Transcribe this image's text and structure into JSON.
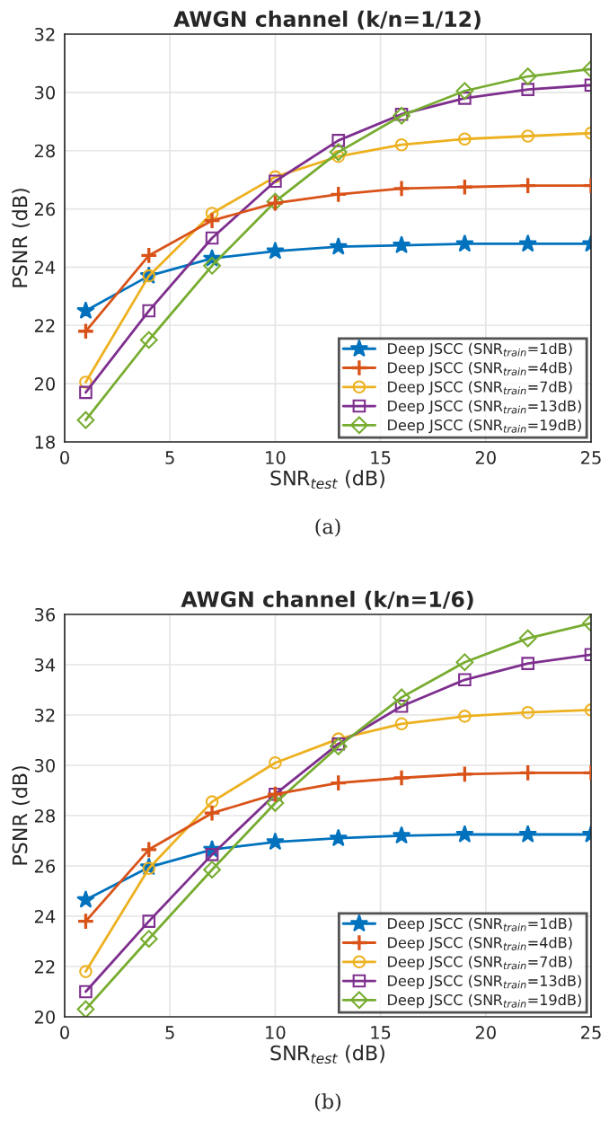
{
  "chart_data": [
    {
      "type": "line",
      "title": "AWGN channel (k/n=1/12)",
      "xlabel": "SNR$_{test}$ (dB)",
      "ylabel": "PSNR (dB)",
      "annotations": [
        "(a)"
      ],
      "x": [
        1,
        4,
        7,
        10,
        13,
        16,
        19,
        22,
        25
      ],
      "xlim": [
        0,
        25
      ],
      "xticks": [
        0,
        5,
        10,
        15,
        20,
        25
      ],
      "ylim": [
        18,
        32
      ],
      "yticks": [
        18,
        20,
        22,
        24,
        26,
        28,
        30,
        32
      ],
      "grid": true,
      "legend": "bottom right",
      "series": [
        {
          "name": "Deep JSCC (SNR$_{train}$=1dB)",
          "color": "#0072bd",
          "marker": "star",
          "values": [
            22.5,
            23.7,
            24.3,
            24.55,
            24.7,
            24.75,
            24.8,
            24.8,
            24.8
          ]
        },
        {
          "name": "Deep JSCC (SNR$_{train}$=4dB)",
          "color": "#d95319",
          "marker": "cross",
          "values": [
            21.8,
            24.4,
            25.6,
            26.2,
            26.5,
            26.7,
            26.75,
            26.8,
            26.8
          ]
        },
        {
          "name": "Deep JSCC (SNR$_{train}$=7dB)",
          "color": "#edb120",
          "marker": "circle",
          "values": [
            20.05,
            23.7,
            25.85,
            27.1,
            27.8,
            28.2,
            28.4,
            28.5,
            28.6
          ]
        },
        {
          "name": "Deep JSCC (SNR$_{train}$=13dB)",
          "color": "#7e2f8e",
          "marker": "square",
          "values": [
            19.7,
            22.5,
            25.0,
            26.95,
            28.35,
            29.25,
            29.8,
            30.1,
            30.25
          ]
        },
        {
          "name": "Deep JSCC (SNR$_{train}$=19dB)",
          "color": "#77ac30",
          "marker": "diamond",
          "values": [
            18.75,
            21.5,
            24.05,
            26.25,
            27.95,
            29.2,
            30.05,
            30.55,
            30.8
          ]
        }
      ]
    },
    {
      "type": "line",
      "title": "AWGN channel (k/n=1/6)",
      "xlabel": "SNR$_{test}$ (dB)",
      "ylabel": "PSNR (dB)",
      "annotations": [
        "(b)"
      ],
      "x": [
        1,
        4,
        7,
        10,
        13,
        16,
        19,
        22,
        25
      ],
      "xlim": [
        0,
        25
      ],
      "xticks": [
        0,
        5,
        10,
        15,
        20,
        25
      ],
      "ylim": [
        20,
        36
      ],
      "yticks": [
        20,
        22,
        24,
        26,
        28,
        30,
        32,
        34,
        36
      ],
      "grid": true,
      "legend": "bottom right",
      "series": [
        {
          "name": "Deep JSCC (SNR$_{train}$=1dB)",
          "color": "#0072bd",
          "marker": "star",
          "values": [
            24.65,
            25.95,
            26.65,
            26.95,
            27.1,
            27.2,
            27.25,
            27.25,
            27.25
          ]
        },
        {
          "name": "Deep JSCC (SNR$_{train}$=4dB)",
          "color": "#d95319",
          "marker": "cross",
          "values": [
            23.8,
            26.65,
            28.1,
            28.85,
            29.3,
            29.5,
            29.65,
            29.7,
            29.7
          ]
        },
        {
          "name": "Deep JSCC (SNR$_{train}$=7dB)",
          "color": "#edb120",
          "marker": "circle",
          "values": [
            21.8,
            25.9,
            28.55,
            30.1,
            31.05,
            31.65,
            31.95,
            32.1,
            32.2
          ]
        },
        {
          "name": "Deep JSCC (SNR$_{train}$=13dB)",
          "color": "#7e2f8e",
          "marker": "square",
          "values": [
            21.0,
            23.8,
            26.45,
            28.85,
            30.85,
            32.35,
            33.4,
            34.05,
            34.4
          ]
        },
        {
          "name": "Deep JSCC (SNR$_{train}$=19dB)",
          "color": "#77ac30",
          "marker": "diamond",
          "values": [
            20.3,
            23.1,
            25.85,
            28.5,
            30.75,
            32.7,
            34.1,
            35.05,
            35.65
          ]
        }
      ]
    }
  ]
}
